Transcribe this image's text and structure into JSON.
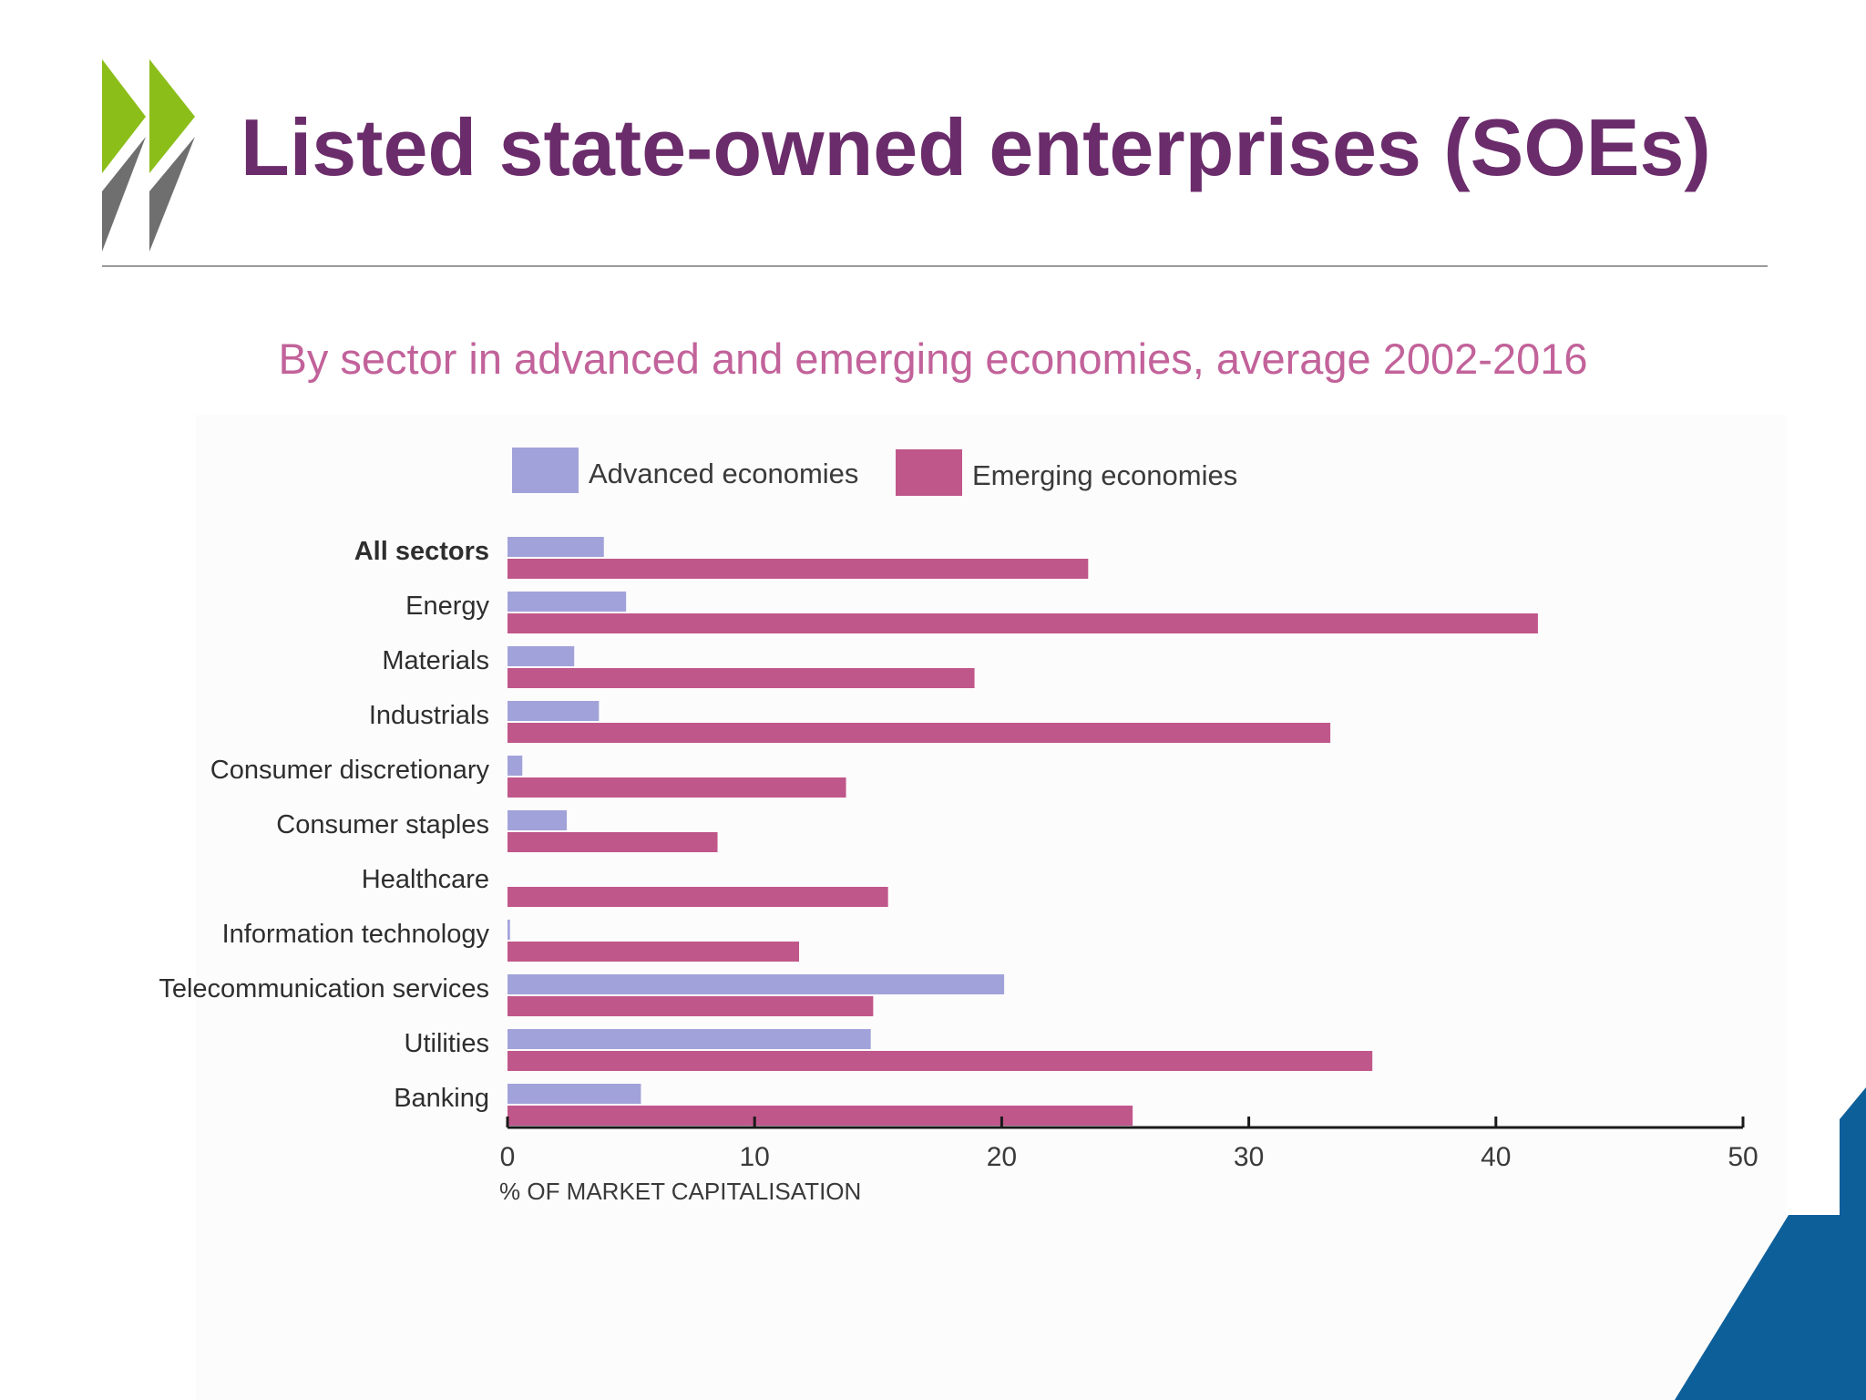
{
  "slide": {
    "title": "Listed state-owned enterprises (SOEs)",
    "subtitle": "By sector in advanced and emerging economies, average 2002-2016",
    "colors": {
      "title": "#6b2c6b",
      "subtitle": "#c2629a",
      "logo_green": "#8cbe1a",
      "logo_grey": "#6f6f6f",
      "corner_blue": "#0d5f9a"
    },
    "logo_icon": "oecd-chevrons-logo-icon",
    "corner_icon": "blue-corner-shape-icon"
  },
  "chart_data": {
    "type": "bar",
    "orientation": "horizontal",
    "title": "",
    "xlabel": "% OF MARKET CAPITALISATION",
    "ylabel": "",
    "xlim": [
      0,
      50
    ],
    "xticks": [
      0,
      10,
      20,
      30,
      40,
      50
    ],
    "grid": false,
    "legend_position": "top",
    "categories": [
      "All sectors",
      "Energy",
      "Materials",
      "Industrials",
      "Consumer discretionary",
      "Consumer staples",
      "Healthcare",
      "Information technology",
      "Telecommunication services",
      "Utilities",
      "Banking"
    ],
    "series": [
      {
        "name": "Advanced economies",
        "color": "#a2a2da",
        "values": [
          3.9,
          4.8,
          2.7,
          3.7,
          0.6,
          2.4,
          0.0,
          0.1,
          20.1,
          14.7,
          5.4
        ]
      },
      {
        "name": "Emerging economies",
        "color": "#c0578a",
        "values": [
          23.5,
          41.7,
          18.9,
          33.3,
          13.7,
          8.5,
          15.4,
          11.8,
          14.8,
          35.0,
          25.3
        ]
      }
    ]
  }
}
